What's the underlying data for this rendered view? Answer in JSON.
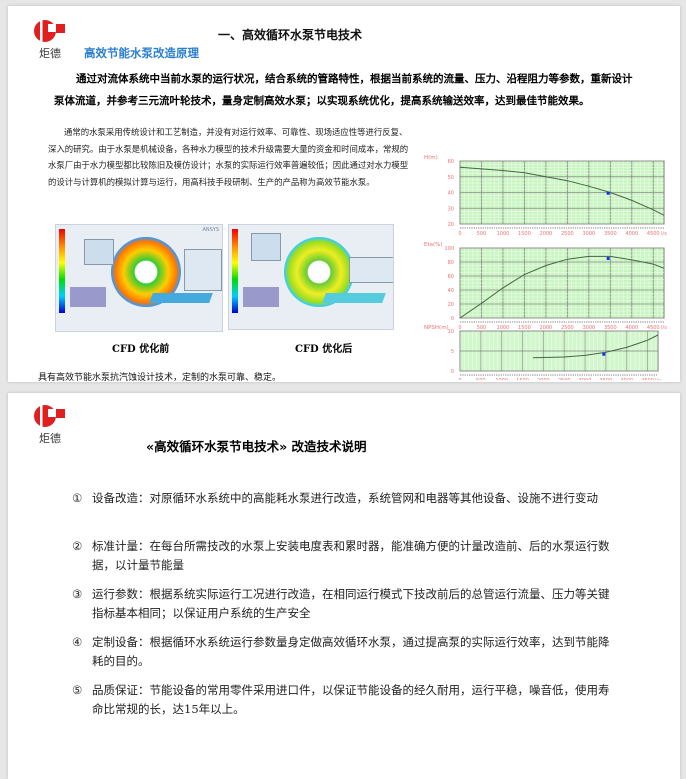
{
  "page1": {
    "logo_text": "炬德",
    "title": "一、高效循环水泵节电技术",
    "subtitle": "高效节能水泵改造原理",
    "intro": "通过对流体系统中当前水泵的运行状况，结合系统的管路特性，根据当前系统的流量、压力、沿程阻力等参数，重新设计泵体流道，并参考三元流叶轮技术，量身定制高效水泵；以实现系统优化，提高系统输送效率，达到最佳节能效果。",
    "body": "通常的水泵采用传统设计和工艺制造，并没有对运行效率、可靠性、现场适应性等进行反复、深入的研究。由于水泵是机械设备，各种水力模型的技术升级需要大量的资金和时间成本，常规的水泵厂由于水力模型都比较陈旧及模仿设计；水泵的实际运行效率普遍较低；因此通过对水力模型的设计与计算机的模拟计算与运行，用高科技手段研制、生产的产品称为高效节能水泵。",
    "cfd_before": "CFD 优化前",
    "cfd_after": "CFD 优化后",
    "ansys_label": "ANSYS",
    "footer": "具有高效节能水泵抗汽蚀设计技术，定制的水泵可靠、稳定。"
  },
  "chart_data": [
    {
      "type": "line",
      "ylabel": "H(m)",
      "ylim": [
        20,
        60
      ],
      "yticks": [
        20,
        30,
        40,
        50,
        60
      ],
      "xlim": [
        0,
        4750
      ],
      "xticks": [
        "0",
        "500",
        "1000",
        "1500",
        "2000",
        "2500",
        "3000",
        "3500",
        "4000",
        "4500",
        "l/s"
      ],
      "grid": true,
      "x": [
        0,
        500,
        1000,
        1500,
        2000,
        2500,
        3000,
        3500,
        4000,
        4500,
        4750
      ],
      "y": [
        56,
        55,
        54,
        52.5,
        50,
        47.5,
        44,
        40,
        35,
        29,
        25.5
      ],
      "marker": {
        "x": 3450,
        "y": 39.5
      }
    },
    {
      "type": "line",
      "ylabel": "Eta(%)",
      "ylim": [
        0,
        100
      ],
      "yticks": [
        0,
        20,
        40,
        60,
        80,
        100
      ],
      "xlim": [
        0,
        4750
      ],
      "xticks": [
        "0",
        "500",
        "1000",
        "1500",
        "2000",
        "2500",
        "3000",
        "3500",
        "4000",
        "4500",
        "l/s"
      ],
      "grid": true,
      "x": [
        0,
        500,
        1000,
        1500,
        2000,
        2500,
        3000,
        3500,
        4000,
        4500,
        4750
      ],
      "y": [
        -2,
        21,
        43,
        62,
        75,
        84,
        88,
        88,
        83,
        77,
        71
      ],
      "marker": {
        "x": 3450,
        "y": 85
      }
    },
    {
      "type": "line",
      "ylabel": "NPSH(m)",
      "ylim": [
        0,
        10
      ],
      "yticks": [
        0,
        5,
        10
      ],
      "xlim": [
        0,
        4750
      ],
      "xticks": [
        "0",
        "500",
        "1000",
        "1500",
        "2000",
        "2500",
        "3000",
        "3500",
        "4000",
        "4500",
        "l/s"
      ],
      "grid": true,
      "x": [
        1750,
        2500,
        3000,
        3500,
        4000,
        4500,
        4750
      ],
      "y": [
        3.3,
        3.5,
        3.9,
        4.7,
        5.9,
        7.7,
        9
      ],
      "marker": {
        "x": 3450,
        "y": 4.2
      }
    }
  ],
  "page2": {
    "logo_text": "炬德",
    "title": "«高效循环水泵节电技术» 改造技术说明",
    "items": [
      {
        "num": "①",
        "text": "设备改造：对原循环水系统中的高能耗水泵进行改造，系统管网和电器等其他设备、设施不进行变动"
      },
      {
        "num": "②",
        "text": "标准计量：在每台所需技改的水泵上安装电度表和累时器，能准确方便的计量改造前、后的水泵运行数据，以计量节能量"
      },
      {
        "num": "③",
        "text": "运行参数：根据系统实际运行工况进行改造，在相同运行模式下技改前后的总管运行流量、压力等关键指标基本相同；以保证用户系统的生产安全"
      },
      {
        "num": "④",
        "text": "定制设备：根据循环水系统运行参数量身定做高效循环水泵，通过提高泵的实际运行效率，达到节能降耗的目的。"
      },
      {
        "num": "⑤",
        "text": "品质保证：节能设备的常用零件采用进口件，以保证节能设备的经久耐用，运行平稳，噪音低，使用寿命比常规的长，达15年以上。"
      }
    ]
  },
  "colors": {
    "logo_red": "#e02020",
    "subtitle_blue": "#2a7fd0",
    "chart_bg": "#c8f5c0",
    "axis_label": "#f07070"
  }
}
